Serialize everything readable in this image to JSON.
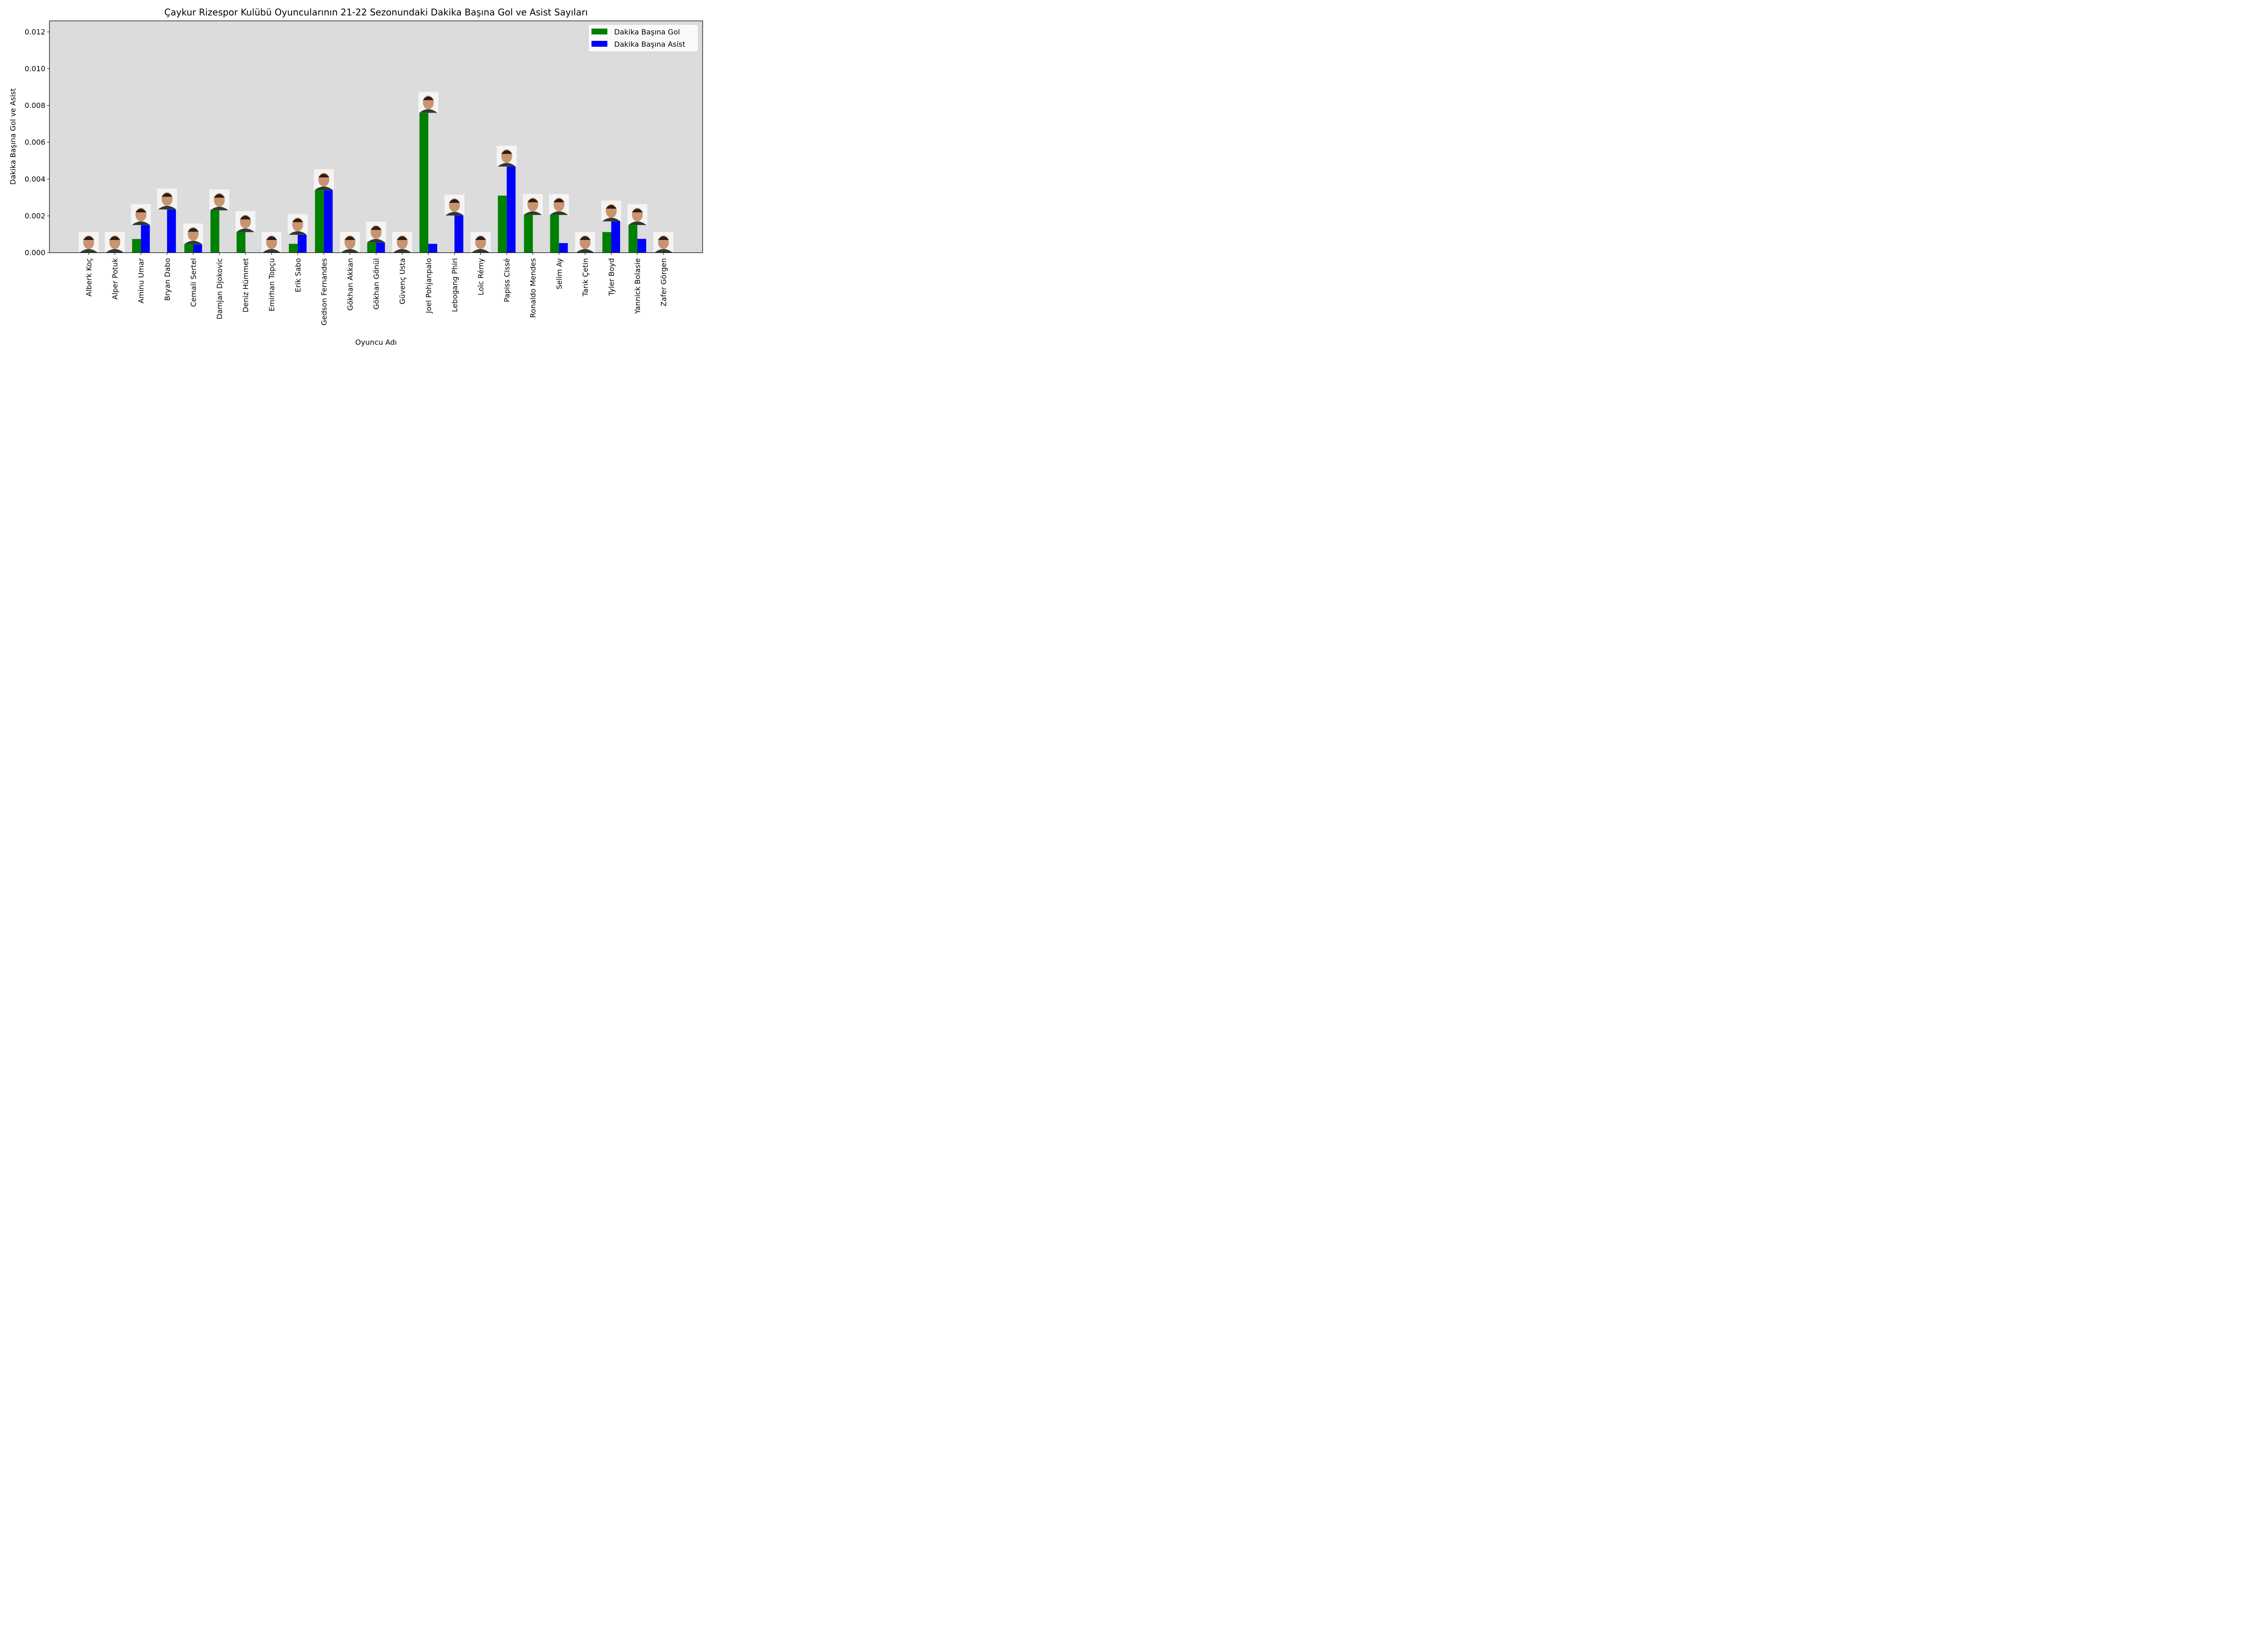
{
  "chart_data": {
    "type": "bar",
    "title": "Çaykur Rizespor Kulübü Oyuncularının 21-22 Sezonundaki Dakika Başına Gol ve Asist Sayıları",
    "xlabel": "Oyuncu Adı",
    "ylabel": "Dakika Başına Gol ve Asist",
    "ylim": [
      0,
      0.0126
    ],
    "yticks": [
      "0.000",
      "0.002",
      "0.004",
      "0.006",
      "0.008",
      "0.010",
      "0.012"
    ],
    "ytick_values": [
      0,
      0.002,
      0.004,
      0.006,
      0.008,
      0.01,
      0.012
    ],
    "grid": false,
    "legend_position": "top-right",
    "categories": [
      "Alberk Koç",
      "Alper Potuk",
      "Aminu Umar",
      "Bryan Dabo",
      "Cemali Sertel",
      "Damjan Djokovic",
      "Deniz Hümmet",
      "Emirhan Topçu",
      "Erik Sabo",
      "Gedson Fernandes",
      "Gökhan Akkan",
      "Gökhan Gönül",
      "Güvenç Usta",
      "Joel Pohjanpalo",
      "Lebogang Phiri",
      "Loïc Rémy",
      "Papiss Cissé",
      "Ronaldo Mendes",
      "Selim Ay",
      "Tarık Çetin",
      "Tyler Boyd",
      "Yannick Bolasie",
      "Zafer Görgen"
    ],
    "series": [
      {
        "name": "Dakika Başına Gol",
        "color": "#008000",
        "values": [
          0,
          0,
          0.00074,
          0,
          0.00045,
          0.0023,
          0.00112,
          0,
          0.00048,
          0.0034,
          0,
          0.00055,
          0,
          0.0076,
          0,
          0,
          0.0031,
          0.00205,
          0.00205,
          0,
          0.00112,
          0.0015,
          0
        ]
      },
      {
        "name": "Dakika Başına Asist",
        "color": "#0000ff",
        "values": [
          0,
          0,
          0.0015,
          0.00235,
          0.00045,
          0,
          0,
          0,
          0.00097,
          0.0034,
          0,
          0.00055,
          0,
          0.00048,
          0.00202,
          0,
          0.00468,
          0,
          0.00052,
          0,
          0.0017,
          0.00075,
          0
        ]
      }
    ],
    "plot_background": "#dcdcdc"
  }
}
